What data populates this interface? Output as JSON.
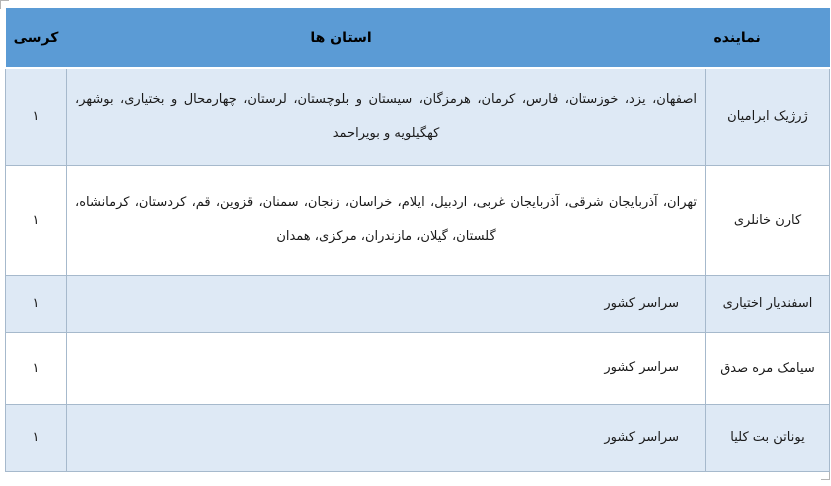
{
  "colors": {
    "header_bg": "#5b9bd5",
    "alt_row_bg": "#dee9f5",
    "row_bg": "#ffffff",
    "grid_border": "#a6b9cc",
    "header_text": "#000000"
  },
  "table": {
    "direction": "rtl",
    "headers": {
      "representative": "نماینده",
      "provinces": "استان ها",
      "seats": "کرسی"
    },
    "rows": [
      {
        "representative": "ژرژیک ابرامیان",
        "provinces": "اصفهان، یزد، خوزستان، فارس، کرمان، هرمزگان، سیستان و بلوچستان، لرستان، چهارمحال و بختیاری، بوشهر، کهگیلویه و بویراحمد",
        "seats": "۱"
      },
      {
        "representative": "کارن خانلری",
        "provinces": "تهران، آذربایجان شرقی، آذربایجان غربی، اردبیل، ایلام، خراسان، زنجان، سمنان، قزوین، قم، کردستان، کرمانشاه، گلستان، گیلان، مازندران، مرکزی، همدان",
        "seats": "۱"
      },
      {
        "representative": "اسفندیار اختیاری",
        "provinces": "سراسر کشور",
        "seats": "۱"
      },
      {
        "representative": "سیامک مره صدق",
        "provinces": "سراسر کشور",
        "seats": "۱"
      },
      {
        "representative": "یوناتن بت کلیا",
        "provinces": "سراسر کشور",
        "seats": "۱"
      }
    ]
  }
}
